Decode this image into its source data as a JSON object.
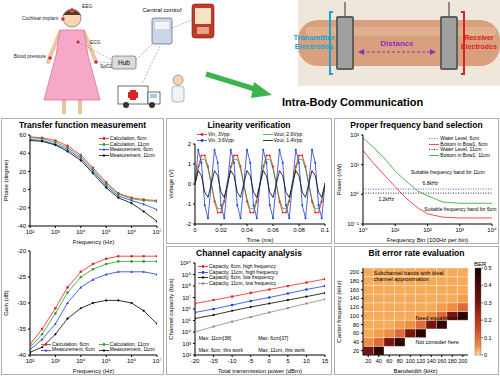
{
  "diagram": {
    "title": "Intra-Body Communication",
    "body_sensors": [
      "EEG",
      "Cochlear implant",
      "Blood pressure",
      "SpO2",
      "ECG"
    ],
    "hub": "Hub",
    "central_control": "Central control",
    "transmitter": "Transmitter Electrodes",
    "distance": "Distance",
    "receiver": "Receiver Electrodes"
  },
  "chart_data": [
    {
      "type": "line",
      "title": "Transfer function measurement",
      "x_label": "Frequency (Hz)",
      "y_label": "Phase (degree)",
      "log": "x",
      "grid": false,
      "legend": "upper right",
      "xlim": [
        100,
        10000000
      ],
      "xticks": [
        {
          "value": 100,
          "label": "10²"
        },
        {
          "value": 1000,
          "label": "10³"
        },
        {
          "value": 10000,
          "label": "10⁴"
        },
        {
          "value": 100000,
          "label": "10⁵"
        },
        {
          "value": 1000000,
          "label": "10⁶"
        },
        {
          "value": 10000000,
          "label": "10⁷"
        }
      ],
      "ylim": [
        -40,
        60
      ],
      "yticks": [
        -40,
        -20,
        0,
        20,
        40,
        60
      ],
      "x": [
        100,
        300,
        1000,
        3000,
        10000,
        30000,
        100000,
        300000,
        1000000,
        3000000,
        10000000
      ],
      "series": [
        {
          "name": "Calculation, 6cm",
          "color": "#e8202a",
          "marker": "circle",
          "line_style": "solid",
          "values": [
            58,
            57,
            54,
            48,
            38,
            24,
            8,
            -4,
            -9,
            -11,
            -12
          ]
        },
        {
          "name": "Calculation, 11cm",
          "color": "#2ca02c",
          "marker": "circle",
          "line_style": "solid",
          "values": [
            57,
            56,
            52,
            46,
            36,
            22,
            6,
            -5,
            -10,
            -12,
            -13
          ]
        },
        {
          "name": "Measurement, 6cm",
          "color": "#1f3fd8",
          "marker": "triangle",
          "line_style": "solid",
          "values": [
            55,
            54,
            50,
            44,
            34,
            20,
            4,
            -7,
            -12,
            -16,
            -22
          ]
        },
        {
          "name": "Measurement, 11cm",
          "color": "#000000",
          "marker": "diamond",
          "line_style": "solid",
          "values": [
            54,
            53,
            49,
            42,
            32,
            18,
            2,
            -9,
            -15,
            -24,
            -35
          ]
        }
      ]
    },
    {
      "type": "line",
      "x_label": "Frequency (Hz)",
      "y_label": "Gain (dB)",
      "log": "x",
      "grid": false,
      "legend": "lower right",
      "xlim": [
        100,
        10000000
      ],
      "xticks": [
        {
          "value": 100,
          "label": "10²"
        },
        {
          "value": 1000,
          "label": "10³"
        },
        {
          "value": 10000,
          "label": "10⁴"
        },
        {
          "value": 100000,
          "label": "10⁵"
        },
        {
          "value": 1000000,
          "label": "10⁶"
        },
        {
          "value": 10000000,
          "label": "10⁷"
        }
      ],
      "ylim": [
        -40,
        -20
      ],
      "yticks": [
        -40,
        -35,
        -30,
        -25,
        -20
      ],
      "x": [
        100,
        300,
        1000,
        3000,
        10000,
        30000,
        100000,
        300000,
        1000000,
        3000000,
        10000000
      ],
      "series": [
        {
          "name": "Calculation, 6cm",
          "color": "#e8202a",
          "marker": "circle",
          "line_style": "solid",
          "values": [
            -38,
            -35,
            -31,
            -27,
            -24,
            -22.5,
            -21.5,
            -21,
            -21,
            -21,
            -21
          ]
        },
        {
          "name": "Calculation, 11cm",
          "color": "#2ca02c",
          "marker": "circle",
          "line_style": "solid",
          "values": [
            -38.5,
            -36,
            -32,
            -28,
            -25,
            -23.5,
            -22.5,
            -22,
            -22,
            -22,
            -22
          ]
        },
        {
          "name": "Measurement, 6cm",
          "color": "#1f3fd8",
          "marker": "triangle",
          "line_style": "solid",
          "values": [
            -39,
            -37,
            -34,
            -30,
            -27,
            -25.5,
            -24.5,
            -24,
            -24,
            -24,
            -24.5
          ]
        },
        {
          "name": "Measurement, 11cm",
          "color": "#000000",
          "marker": "diamond",
          "line_style": "solid",
          "values": [
            -39.5,
            -38.5,
            -36,
            -33,
            -31,
            -30,
            -29.5,
            -29.5,
            -30,
            -31.5,
            -34
          ]
        }
      ]
    },
    {
      "type": "line",
      "title": "Linearity verification",
      "x_label": "Time (ms)",
      "y_label": "Voltage (V)",
      "grid": false,
      "legend": "top",
      "xlim": [
        0,
        0.1
      ],
      "xticks": [
        0,
        0.02,
        0.04,
        0.06,
        0.08,
        0.1
      ],
      "ylim": [
        -2,
        2
      ],
      "yticks": [
        -2,
        -1,
        0,
        1,
        2
      ],
      "x": [
        0,
        0.0025,
        0.005,
        0.0075,
        0.01,
        0.0125,
        0.015,
        0.0175,
        0.02,
        0.0225,
        0.025,
        0.0275,
        0.03,
        0.0325,
        0.035,
        0.0375,
        0.04,
        0.0425,
        0.045,
        0.0475,
        0.05,
        0.0525,
        0.055,
        0.0575,
        0.06,
        0.0625,
        0.065,
        0.0675,
        0.07,
        0.0725,
        0.075,
        0.0775,
        0.08,
        0.0825,
        0.085,
        0.0875,
        0.09,
        0.0925,
        0.095,
        0.0975,
        0.1
      ],
      "series": [
        {
          "name": "Vin, 3Vpp",
          "color": "#e8202a",
          "marker": "circle",
          "line_style": "solid",
          "values": [
            0,
            0.88,
            1.43,
            1.43,
            0.88,
            0,
            -0.88,
            -1.43,
            -1.43,
            -0.88,
            0,
            0.88,
            1.43,
            1.43,
            0.88,
            0,
            -0.88,
            -1.43,
            -1.43,
            -0.88,
            0,
            0.88,
            1.43,
            1.43,
            0.88,
            0,
            -0.88,
            -1.43,
            -1.43,
            -0.88,
            0,
            0.88,
            1.43,
            1.43,
            0.88,
            0,
            -0.88,
            -1.43,
            -1.43,
            -0.88,
            0
          ]
        },
        {
          "name": "Vout, 2.6Vpp",
          "color": "#2ca02c",
          "marker": "none",
          "line_style": "solid",
          "values": [
            0,
            0.76,
            1.24,
            1.24,
            0.76,
            0,
            -0.76,
            -1.24,
            -1.24,
            -0.76,
            0,
            0.76,
            1.24,
            1.24,
            0.76,
            0,
            -0.76,
            -1.24,
            -1.24,
            -0.76,
            0,
            0.76,
            1.24,
            1.24,
            0.76,
            0,
            -0.76,
            -1.24,
            -1.24,
            -0.76,
            0,
            0.76,
            1.24,
            1.24,
            0.76,
            0,
            -0.76,
            -1.24,
            -1.24,
            -0.76,
            0
          ]
        },
        {
          "name": "Vin, 3.6Vpp",
          "color": "#1f3fd8",
          "marker": "circle",
          "line_style": "solid",
          "values": [
            0,
            1.71,
            1.06,
            -1.06,
            -1.71,
            0,
            1.71,
            1.06,
            -1.06,
            -1.71,
            0,
            1.71,
            1.06,
            -1.06,
            -1.71,
            0,
            1.71,
            1.06,
            -1.06,
            -1.71,
            0,
            1.71,
            1.06,
            -1.06,
            -1.71,
            0,
            1.71,
            1.06,
            -1.06,
            -1.71,
            0,
            1.71,
            1.06,
            -1.06,
            -1.71,
            0,
            1.71,
            1.06,
            -1.06,
            -1.71,
            0
          ]
        },
        {
          "name": "Vout, 1.4Vpp",
          "color": "#000000",
          "marker": "none",
          "line_style": "solid",
          "values": [
            0,
            0.67,
            0.41,
            -0.41,
            -0.67,
            0,
            0.67,
            0.41,
            -0.41,
            -0.67,
            0,
            0.67,
            0.41,
            -0.41,
            -0.67,
            0,
            0.67,
            0.41,
            -0.41,
            -0.67,
            0,
            0.67,
            0.41,
            -0.41,
            -0.67,
            0,
            0.67,
            0.41,
            -0.41,
            -0.67,
            0,
            0.67,
            0.41,
            -0.41,
            -0.67,
            0,
            0.67,
            0.41,
            -0.41,
            -0.67,
            0
          ]
        }
      ]
    },
    {
      "type": "line",
      "title": "Proper frequency band selection",
      "x_label": "Frequency Bin (100Hz per bin)",
      "y_label": "Power (nW)",
      "log": true,
      "grid": false,
      "legend": "upper right",
      "xlim": [
        1,
        10000
      ],
      "xticks": [
        {
          "value": 1,
          "label": "10⁰"
        },
        {
          "value": 10,
          "label": "10¹"
        },
        {
          "value": 100,
          "label": "10²"
        },
        {
          "value": 1000,
          "label": "10³"
        },
        {
          "value": 10000,
          "label": "10⁴"
        }
      ],
      "ylim": [
        0.1,
        100
      ],
      "yticks": [
        {
          "value": 0.1,
          "label": "10⁻¹"
        },
        {
          "value": 1,
          "label": "10⁰"
        },
        {
          "value": 10,
          "label": "10¹"
        },
        {
          "value": 100,
          "label": "10²"
        }
      ],
      "x": [
        1,
        2,
        5,
        10,
        20,
        50,
        100,
        300,
        1000,
        3000,
        10000
      ],
      "series": [
        {
          "name": "Water Level, 6cm",
          "color": "#1f3fd8",
          "marker": "none",
          "line_style": "dotted",
          "values": [
            1.5,
            1.5,
            1.5,
            1.5,
            1.5,
            1.5,
            1.5,
            1.5,
            1.5,
            1.5,
            1.5
          ]
        },
        {
          "name": "Bottom in Bow1, 6cm",
          "color": "#e8202a",
          "marker": "none",
          "line_style": "solid",
          "values": [
            30,
            12,
            4,
            1.8,
            0.8,
            0.35,
            0.22,
            0.17,
            0.16,
            0.16,
            0.16
          ]
        },
        {
          "name": "Water Level, 11cm",
          "color": "#000000",
          "marker": "none",
          "line_style": "dotted",
          "values": [
            1.1,
            1.1,
            1.1,
            1.1,
            1.1,
            1.1,
            1.1,
            1.1,
            1.1,
            1.1,
            1.1
          ]
        },
        {
          "name": "Bottom in Bow1, 11cm",
          "color": "#2ca02c",
          "marker": "none",
          "line_style": "solid",
          "values": [
            80,
            40,
            15,
            6,
            3,
            1.3,
            0.9,
            0.55,
            0.5,
            0.5,
            0.5
          ]
        }
      ],
      "annotations": [
        {
          "text": "6.8kHz",
          "x": 70,
          "y": 2
        },
        {
          "text": "1.2kHz",
          "x": 3,
          "y": 0.6
        },
        {
          "text": "Suitable frequency band for 11cm",
          "x": 30,
          "y": 5
        },
        {
          "text": "Suitable frequency band for 6cm",
          "x": 80,
          "y": 0.28
        }
      ]
    },
    {
      "type": "line",
      "title": "Channel capacity analysis",
      "x_label": "Total transmission power (dBm)",
      "y_label": "Channel capacity (bps)",
      "log": "y",
      "grid": false,
      "legend": "upper left",
      "xlim": [
        -20,
        15
      ],
      "xticks": [
        -20,
        -15,
        -10,
        -5,
        0,
        5,
        10,
        15
      ],
      "ylim": [
        100,
        10000000000
      ],
      "yticks": [
        {
          "value": 100,
          "label": "10²"
        },
        {
          "value": 1000,
          "label": "10³"
        },
        {
          "value": 10000,
          "label": "10⁴"
        },
        {
          "value": 100000,
          "label": "10⁵"
        },
        {
          "value": 1000000,
          "label": "10⁶"
        },
        {
          "value": 10000000,
          "label": "10⁷"
        },
        {
          "value": 100000000,
          "label": "10⁸"
        },
        {
          "value": 1000000000,
          "label": "10⁹"
        },
        {
          "value": 10000000000,
          "label": "10¹⁰"
        }
      ],
      "x": [
        -20,
        -15,
        -10,
        -5,
        0,
        5,
        10,
        15
      ],
      "series": [
        {
          "name": "Capacity, 6cm, high frequency",
          "color": "#e8202a",
          "marker": "circle",
          "line_style": "solid",
          "values": [
            3000000,
            6000000,
            12000000,
            25000000,
            50000000,
            100000000,
            200000000,
            400000000
          ]
        },
        {
          "name": "Capacity, 11cm, high frequency",
          "color": "#1f3fd8",
          "marker": "circle",
          "line_style": "solid",
          "values": [
            500000,
            1000000,
            2200000,
            5000000,
            10000000,
            22000000,
            50000000,
            100000000
          ]
        },
        {
          "name": "Capacity, 6cm, low frequency",
          "color": "#000000",
          "marker": "diamond",
          "line_style": "solid",
          "values": [
            150000,
            300000,
            700000,
            1500000,
            3000000,
            6000000,
            12000000,
            25000000
          ]
        },
        {
          "name": "Capacity, 11cm, low frequency",
          "color": "#888888",
          "marker": "square",
          "line_style": "solid",
          "values": [
            10000,
            30000,
            80000,
            200000,
            500000,
            1200000,
            3000000,
            7000000
          ]
        }
      ],
      "annotations": [
        {
          "text": "Max: 6cm, this work",
          "x": -19,
          "y": 200
        },
        {
          "text": "Max: 11cm, this work",
          "x": -3,
          "y": 200
        },
        {
          "text": "Max: 11cm[38]",
          "x": -19,
          "y": 2000
        },
        {
          "text": "Max: 6cm[37]",
          "x": -3,
          "y": 2000
        }
      ]
    },
    {
      "type": "heatmap",
      "title": "Bit error rate evaluation",
      "x_label": "Bandwidth (kHz)",
      "y_label": "Carrier frequency (kHz)",
      "xlim": [
        10,
        210
      ],
      "xticks": [
        20,
        40,
        60,
        80,
        100,
        120,
        140,
        160,
        180,
        200
      ],
      "ylim": [
        10,
        210
      ],
      "yticks": [
        20,
        40,
        60,
        80,
        100,
        120,
        140,
        160,
        180,
        200
      ],
      "x": [
        20,
        40,
        60,
        80,
        100,
        120,
        140,
        160,
        180,
        200
      ],
      "y": [
        20,
        40,
        60,
        80,
        100,
        120,
        140,
        160,
        180,
        200
      ],
      "cells": [
        [
          0.3,
          0.45,
          null,
          null,
          null,
          null,
          null,
          null,
          null,
          null
        ],
        [
          0.05,
          0.1,
          0.3,
          0.45,
          null,
          null,
          null,
          null,
          null,
          null
        ],
        [
          0.02,
          0.03,
          0.05,
          0.1,
          0.3,
          0.45,
          null,
          null,
          null,
          null
        ],
        [
          0.02,
          0.02,
          0.02,
          0.03,
          0.05,
          0.1,
          0.3,
          0.45,
          null,
          null
        ],
        [
          0.02,
          0.02,
          0.02,
          0.02,
          0.02,
          0.03,
          0.05,
          0.1,
          0.3,
          0.45
        ],
        [
          0.02,
          0.02,
          0.02,
          0.02,
          0.02,
          0.02,
          0.02,
          0.03,
          0.05,
          0.1
        ],
        [
          0.02,
          0.02,
          0.02,
          0.02,
          0.02,
          0.02,
          0.02,
          0.02,
          0.02,
          0.03
        ],
        [
          0.02,
          0.02,
          0.02,
          0.02,
          0.02,
          0.02,
          0.02,
          0.02,
          0.02,
          0.02
        ],
        [
          0.02,
          0.02,
          0.02,
          0.02,
          0.02,
          0.02,
          0.02,
          0.02,
          0.02,
          0.02
        ],
        [
          0.02,
          0.02,
          0.02,
          0.02,
          0.02,
          0.02,
          0.02,
          0.02,
          0.02,
          0.02
        ]
      ],
      "colorbar": {
        "label": "BER",
        "range": [
          0,
          0.5
        ],
        "ticks": [
          0,
          0.1,
          0.2,
          0.3,
          0.4,
          0.5
        ]
      },
      "annotations": [
        {
          "text": "Subchannel bands with ideal channel approximation",
          "x": 30,
          "y": 195
        },
        {
          "text": "Need equalization",
          "x": 110,
          "y": 90
        },
        {
          "text": "Not consider here",
          "x": 110,
          "y": 35
        }
      ]
    }
  ]
}
